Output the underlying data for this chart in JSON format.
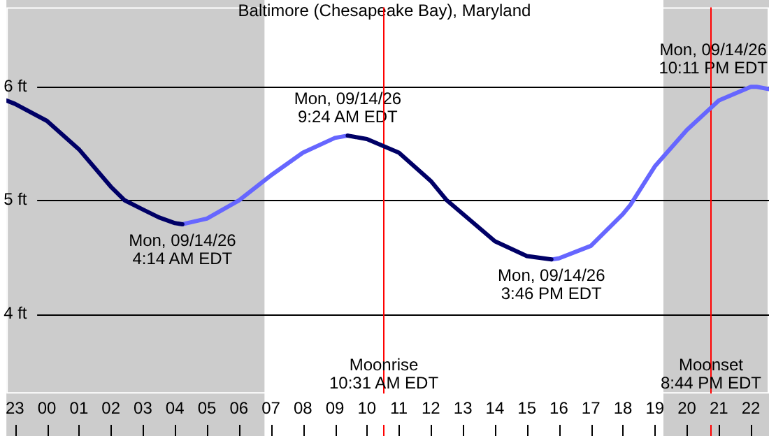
{
  "chart_data": {
    "type": "line",
    "title": "Baltimore (Chesapeake Bay), Maryland",
    "xlim": [
      "--09-13T22:44",
      "--09-14T22:34"
    ],
    "ylim": [
      3.3,
      6.7
    ],
    "xticks": [
      {
        "value": "--09-13T23:00",
        "label": "23"
      },
      {
        "value": "--09-14T00:00",
        "label": "00"
      },
      {
        "value": "--09-14T01:00",
        "label": "01"
      },
      {
        "value": "--09-14T02:00",
        "label": "02"
      },
      {
        "value": "--09-14T03:00",
        "label": "03"
      },
      {
        "value": "--09-14T04:00",
        "label": "04"
      },
      {
        "value": "--09-14T05:00",
        "label": "05"
      },
      {
        "value": "--09-14T06:00",
        "label": "06"
      },
      {
        "value": "--09-14T07:00",
        "label": "07"
      },
      {
        "value": "--09-14T08:00",
        "label": "08"
      },
      {
        "value": "--09-14T09:00",
        "label": "09"
      },
      {
        "value": "--09-14T10:00",
        "label": "10"
      },
      {
        "value": "--09-14T11:00",
        "label": "11"
      },
      {
        "value": "--09-14T12:00",
        "label": "12"
      },
      {
        "value": "--09-14T13:00",
        "label": "13"
      },
      {
        "value": "--09-14T14:00",
        "label": "14"
      },
      {
        "value": "--09-14T15:00",
        "label": "15"
      },
      {
        "value": "--09-14T16:00",
        "label": "16"
      },
      {
        "value": "--09-14T17:00",
        "label": "17"
      },
      {
        "value": "--09-14T18:00",
        "label": "18"
      },
      {
        "value": "--09-14T19:00",
        "label": "19"
      },
      {
        "value": "--09-14T20:00",
        "label": "20"
      },
      {
        "value": "--09-14T21:00",
        "label": "21"
      },
      {
        "value": "--09-14T22:00",
        "label": "22"
      }
    ],
    "yticks": [
      {
        "value": 4,
        "label": "4 ft"
      },
      {
        "value": 5,
        "label": "5 ft"
      },
      {
        "value": 6,
        "label": "6 ft"
      }
    ],
    "grid": "y",
    "legend": false,
    "marker": "none",
    "line_style": "solid",
    "bands": [
      {
        "axis": "x",
        "from": "--09-13T22:44",
        "to": "--09-14T06:48",
        "color": "#cccccc"
      },
      {
        "axis": "x",
        "from": "--09-14T19:16",
        "to": "--09-14T22:34",
        "color": "#cccccc"
      }
    ],
    "ref_lines": [
      {
        "axis": "x",
        "value": "--09-14T10:31",
        "label": "Moonrise\n10:31 AM EDT",
        "color": "#ff0000"
      },
      {
        "axis": "x",
        "value": "--09-14T20:44",
        "label": "Moonset\n8:44 PM EDT",
        "color": "#ff0000"
      }
    ],
    "series": [
      {
        "color": "#000066",
        "x": [
          "--09-13T22:44",
          "--09-13T23:00",
          "--09-14T00:00",
          "--09-14T01:00",
          "--09-14T02:00",
          "--09-14T02:26",
          "--09-14T03:00",
          "--09-14T03:30",
          "--09-14T04:00",
          "--09-14T04:14",
          "--09-14T07:00",
          "--09-14T09:24",
          "--09-14T10:00",
          "--09-14T11:00",
          "--09-14T12:00",
          "--09-14T12:30",
          "--09-14T13:00",
          "--09-14T14:00",
          "--09-14T15:00",
          "--09-14T15:46"
        ],
        "values": [
          5.88,
          5.85,
          5.7,
          5.45,
          5.12,
          5.0,
          4.92,
          4.85,
          4.8,
          4.79,
          null,
          5.57,
          5.54,
          5.42,
          5.17,
          5.0,
          4.88,
          4.64,
          4.51,
          4.48
        ],
        "value_labels": [
          null,
          null,
          null,
          null,
          null,
          null,
          null,
          null,
          null,
          "Mon, 09/14/26\n4:14 AM EDT",
          null,
          "Mon, 09/14/26\n9:24 AM EDT",
          null,
          null,
          null,
          null,
          null,
          null,
          null,
          "Mon, 09/14/26\n3:46 PM EDT"
        ]
      },
      {
        "color": "#6666ff",
        "x": [
          "--09-14T04:14",
          "--09-14T05:00",
          "--09-14T06:00",
          "--09-14T07:00",
          "--09-14T08:00",
          "--09-14T09:00",
          "--09-14T09:24",
          "--09-14T12:00",
          "--09-14T15:46",
          "--09-14T16:00",
          "--09-14T17:00",
          "--09-14T18:00",
          "--09-14T18:14",
          "--09-14T19:00",
          "--09-14T20:00",
          "--09-14T21:00",
          "--09-14T22:00",
          "--09-14T22:11",
          "--09-14T22:34"
        ],
        "values": [
          4.79,
          4.84,
          5.0,
          5.22,
          5.42,
          5.55,
          5.57,
          null,
          4.48,
          4.49,
          4.6,
          4.88,
          4.96,
          5.3,
          5.62,
          5.88,
          6.0,
          6.0,
          5.98
        ],
        "value_labels": [
          null,
          null,
          null,
          null,
          null,
          null,
          null,
          null,
          null,
          null,
          null,
          null,
          null,
          null,
          null,
          null,
          null,
          "Mon, 09/14/26\n10:11 PM EDT",
          null
        ]
      }
    ]
  }
}
